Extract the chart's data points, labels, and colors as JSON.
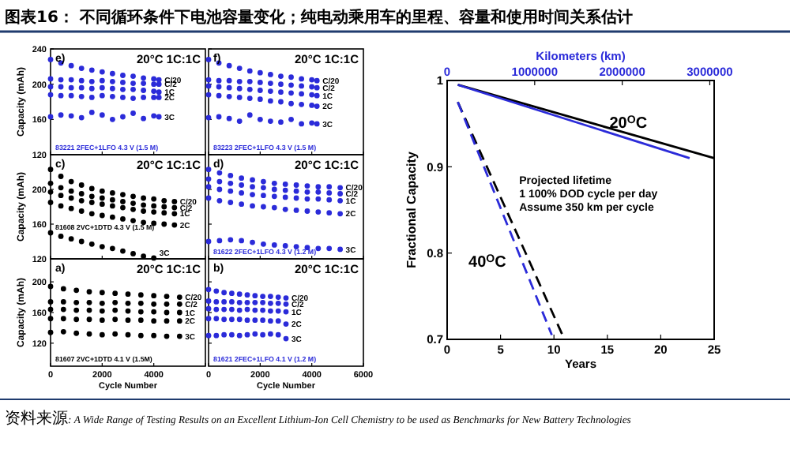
{
  "chart_data": [
    {
      "type": "scatter",
      "title": "图表16： 不同循环条件下电池容量变化；纯电动乘用车的里程、容量和使用时间关系估计",
      "marker": "circle",
      "tick_labels": "y",
      "ylabel": "Capacity (mAh)",
      "xlim": [
        0,
        6000
      ],
      "xticks": [
        0,
        2000,
        4000,
        6000
      ],
      "ylim": [
        120,
        240
      ],
      "yticks": [
        120,
        160,
        200,
        240
      ],
      "annotations": [
        "e)",
        "20°C 1C:1C",
        "83221 2FEC+1LFO 4.3 V (1.5 M)"
      ],
      "x": [
        0,
        400,
        800,
        1200,
        1600,
        2000,
        2400,
        2800,
        3200,
        3600,
        4000,
        4200
      ],
      "series": [
        {
          "name": "C/20",
          "color": "#2b2bd9",
          "values": [
            228,
            224,
            221,
            218,
            216,
            214,
            212,
            210,
            209,
            207,
            206,
            205
          ]
        },
        {
          "name": "C/2",
          "color": "#2b2bd9",
          "values": [
            206,
            205,
            205,
            204,
            203,
            204,
            203,
            202,
            201,
            201,
            200,
            200
          ]
        },
        {
          "name": "1C",
          "color": "#2b2bd9",
          "values": [
            197,
            197,
            196,
            196,
            195,
            196,
            195,
            194,
            194,
            193,
            192,
            191
          ]
        },
        {
          "name": "2C",
          "color": "#2b2bd9",
          "values": [
            188,
            187,
            187,
            186,
            185,
            187,
            186,
            185,
            184,
            185,
            185,
            185
          ]
        },
        {
          "name": "3C",
          "color": "#2b2bd9",
          "values": [
            163,
            165,
            164,
            162,
            168,
            165,
            160,
            163,
            167,
            161,
            164,
            163
          ]
        }
      ]
    },
    {
      "type": "scatter",
      "marker": "circle",
      "tick_labels": false,
      "xlim": [
        0,
        6000
      ],
      "xticks": [
        0,
        2000,
        4000,
        6000
      ],
      "ylim": [
        120,
        240
      ],
      "yticks": [
        120,
        160,
        200,
        240
      ],
      "annotations": [
        "f)",
        "20°C 1C:1C",
        "83223 2FEC+1LFO 4.3 V (1.5 M)"
      ],
      "x": [
        0,
        400,
        800,
        1200,
        1600,
        2000,
        2400,
        2800,
        3200,
        3600,
        4000,
        4200
      ],
      "series": [
        {
          "name": "C/20",
          "color": "#2b2bd9",
          "values": [
            228,
            224,
            221,
            218,
            215,
            213,
            211,
            209,
            208,
            206,
            205,
            204
          ]
        },
        {
          "name": "C/2",
          "color": "#2b2bd9",
          "values": [
            205,
            204,
            204,
            203,
            203,
            202,
            201,
            200,
            199,
            198,
            197,
            196
          ]
        },
        {
          "name": "1C",
          "color": "#2b2bd9",
          "values": [
            198,
            197,
            196,
            195,
            194,
            193,
            192,
            191,
            190,
            189,
            188,
            187
          ]
        },
        {
          "name": "2C",
          "color": "#2b2bd9",
          "values": [
            188,
            187,
            186,
            185,
            184,
            183,
            181,
            180,
            178,
            177,
            176,
            175
          ]
        },
        {
          "name": "3C",
          "color": "#2b2bd9",
          "values": [
            162,
            163,
            161,
            158,
            165,
            160,
            158,
            157,
            160,
            155,
            156,
            155
          ]
        }
      ]
    },
    {
      "type": "scatter",
      "marker": "circle",
      "tick_labels": "y",
      "ylabel": "Capacity (mAh)",
      "xlim": [
        0,
        6000
      ],
      "xticks": [
        0,
        2000,
        4000,
        6000
      ],
      "ylim": [
        120,
        240
      ],
      "yticks": [
        120,
        160,
        200,
        {
          "value": 240,
          "label": null
        }
      ],
      "annotations": [
        "c)",
        "20°C 1C:1C",
        "81608 2VC+1DTD 4.3 V (1.5 M)"
      ],
      "x": [
        0,
        400,
        800,
        1200,
        1600,
        2000,
        2400,
        2800,
        3200,
        3600,
        4000,
        4400,
        4800
      ],
      "series": [
        {
          "name": "C/20",
          "color": "#000000",
          "values": [
            223,
            215,
            209,
            205,
            201,
            198,
            196,
            194,
            192,
            190,
            189,
            187,
            186
          ]
        },
        {
          "name": "C/2",
          "color": "#000000",
          "values": [
            207,
            202,
            198,
            195,
            192,
            190,
            188,
            186,
            184,
            182,
            181,
            180,
            179
          ]
        },
        {
          "name": "1C",
          "color": "#000000",
          "values": [
            197,
            193,
            190,
            187,
            185,
            183,
            181,
            179,
            177,
            175,
            174,
            173,
            172
          ]
        },
        {
          "name": "2C",
          "color": "#000000",
          "values": [
            185,
            181,
            178,
            175,
            172,
            170,
            168,
            166,
            164,
            162,
            161,
            160,
            159
          ]
        },
        {
          "name": "3C",
          "color": "#000000",
          "values": [
            150,
            146,
            143,
            140,
            137,
            134,
            132,
            129,
            126,
            123,
            121,
            null,
            null
          ]
        }
      ]
    },
    {
      "type": "scatter",
      "marker": "circle",
      "tick_labels": false,
      "xlim": [
        0,
        6000
      ],
      "xticks": [
        0,
        2000,
        4000,
        6000
      ],
      "ylim": [
        120,
        240
      ],
      "yticks": [
        120,
        160,
        200,
        240
      ],
      "annotations": [
        "d)",
        "20°C 1C:1C",
        "81622 2FEC+1LFO 4.3 V (1.2 M)"
      ],
      "x": [
        0,
        425,
        850,
        1275,
        1700,
        2125,
        2550,
        2975,
        3400,
        3825,
        4250,
        4675,
        5100
      ],
      "series": [
        {
          "name": "C/20",
          "color": "#2b2bd9",
          "values": [
            223,
            219,
            216,
            213,
            211,
            209,
            207,
            206,
            205,
            204,
            203,
            203,
            202
          ]
        },
        {
          "name": "C/2",
          "color": "#2b2bd9",
          "values": [
            212,
            209,
            207,
            205,
            203,
            202,
            200,
            199,
            198,
            197,
            197,
            196,
            195
          ]
        },
        {
          "name": "1C",
          "color": "#2b2bd9",
          "values": [
            203,
            200,
            198,
            196,
            194,
            193,
            192,
            191,
            190,
            189,
            189,
            188,
            187
          ]
        },
        {
          "name": "2C",
          "color": "#2b2bd9",
          "values": [
            190,
            187,
            185,
            183,
            181,
            180,
            179,
            177,
            176,
            175,
            174,
            173,
            172
          ]
        },
        {
          "name": "3C",
          "color": "#2b2bd9",
          "values": [
            140,
            141,
            142,
            141,
            139,
            137,
            136,
            135,
            134,
            133,
            132,
            132,
            131
          ]
        }
      ]
    },
    {
      "type": "scatter",
      "marker": "circle",
      "ylabel": "Capacity (mAh)",
      "xlabel": "Cycle Number",
      "xlim": [
        0,
        6000
      ],
      "xticks": [
        0,
        2000,
        4000,
        {
          "value": 6000,
          "label": null
        }
      ],
      "ylim": [
        90,
        230
      ],
      "yticks": [
        120,
        160,
        200
      ],
      "annotations": [
        "a)",
        "20°C 1C:1C",
        "81607 2VC+1DTD 4.1 V (1.5M)"
      ],
      "x": [
        0,
        500,
        1000,
        1500,
        2000,
        2500,
        3000,
        3500,
        4000,
        4500,
        5000
      ],
      "series": [
        {
          "name": "C/20",
          "color": "#000000",
          "values": [
            194,
            191,
            189,
            187,
            186,
            185,
            184,
            183,
            182,
            181,
            180
          ]
        },
        {
          "name": "C/2",
          "color": "#000000",
          "values": [
            174,
            174,
            173,
            173,
            172,
            173,
            172,
            172,
            171,
            171,
            171
          ]
        },
        {
          "name": "1C",
          "color": "#000000",
          "values": [
            164,
            164,
            163,
            163,
            162,
            163,
            162,
            161,
            161,
            160,
            160
          ]
        },
        {
          "name": "2C",
          "color": "#000000",
          "values": [
            152,
            152,
            151,
            151,
            150,
            151,
            150,
            150,
            149,
            149,
            149
          ]
        },
        {
          "name": "3C",
          "color": "#000000",
          "values": [
            134,
            135,
            133,
            132,
            131,
            132,
            131,
            130,
            130,
            129,
            129
          ]
        }
      ]
    },
    {
      "type": "scatter",
      "marker": "circle",
      "tick_labels": "x",
      "xlabel": "Cycle Number",
      "xlim": [
        0,
        6000
      ],
      "xticks": [
        0,
        2000,
        4000,
        6000
      ],
      "ylim": [
        90,
        230
      ],
      "yticks": [
        120,
        160,
        200
      ],
      "annotations": [
        "b)",
        "20°C 1C:1C",
        "81621 2FEC+1LFO 4.1 V (1.2 M)"
      ],
      "x": [
        0,
        300,
        600,
        900,
        1200,
        1500,
        1800,
        2100,
        2400,
        2700,
        3000
      ],
      "series": [
        {
          "name": "C/20",
          "color": "#2b2bd9",
          "values": [
            190,
            188,
            186,
            185,
            184,
            183,
            182,
            181,
            181,
            180,
            179
          ]
        },
        {
          "name": "C/2",
          "color": "#2b2bd9",
          "values": [
            175,
            174,
            174,
            174,
            173,
            173,
            173,
            173,
            172,
            172,
            171
          ]
        },
        {
          "name": "1C",
          "color": "#2b2bd9",
          "values": [
            165,
            164,
            164,
            164,
            163,
            164,
            163,
            163,
            162,
            162,
            161
          ]
        },
        {
          "name": "2C",
          "color": "#2b2bd9",
          "values": [
            152,
            152,
            151,
            151,
            151,
            150,
            150,
            150,
            149,
            149,
            145
          ]
        },
        {
          "name": "3C",
          "color": "#2b2bd9",
          "values": [
            130,
            130,
            131,
            131,
            130,
            131,
            132,
            131,
            132,
            131,
            126
          ]
        }
      ]
    },
    {
      "type": "line",
      "xlabel": "Years",
      "x2label": "Kilometers (km)",
      "ylabel": "Fractional Capacity",
      "xlim": [
        0,
        25
      ],
      "xticks": [
        0,
        5,
        10,
        15,
        20,
        25
      ],
      "x2lim": [
        0,
        3050000
      ],
      "x2ticks": [
        0,
        1000000,
        2000000,
        3000000
      ],
      "ylim": [
        0.7,
        1
      ],
      "yticks": [
        0.7,
        0.8,
        0.9,
        1
      ],
      "annotations": [
        "Projected lifetime",
        "1 100% DOD cycle per day",
        "Assume 350 km per cycle",
        "资料来源: A Wide Range of Testing Results on an Excellent Lithium-Ion Cell Chemistry to be used as Benchmarks for New Battery Technologies",
        "40$^{O}$C",
        {
          "text": "20$^{O}$C",
          "x": 15.2,
          "y": 0.945
        }
      ],
      "series": [
        {
          "color": "#000000",
          "line_style": "solid",
          "x": [
            1,
            25
          ],
          "values": [
            0.995,
            0.91
          ]
        },
        {
          "color": "#2b2bd9",
          "line_style": "solid",
          "x": [
            1,
            22.7
          ],
          "values": [
            0.995,
            0.91
          ]
        },
        {
          "color": "#000000",
          "line_style": "dashed",
          "x": [
            1,
            10.8
          ],
          "values": [
            0.975,
            0.705
          ]
        },
        {
          "color": "#2b2bd9",
          "line_style": "dashed",
          "x": [
            1,
            9.8
          ],
          "values": [
            0.975,
            0.705
          ]
        }
      ]
    }
  ]
}
